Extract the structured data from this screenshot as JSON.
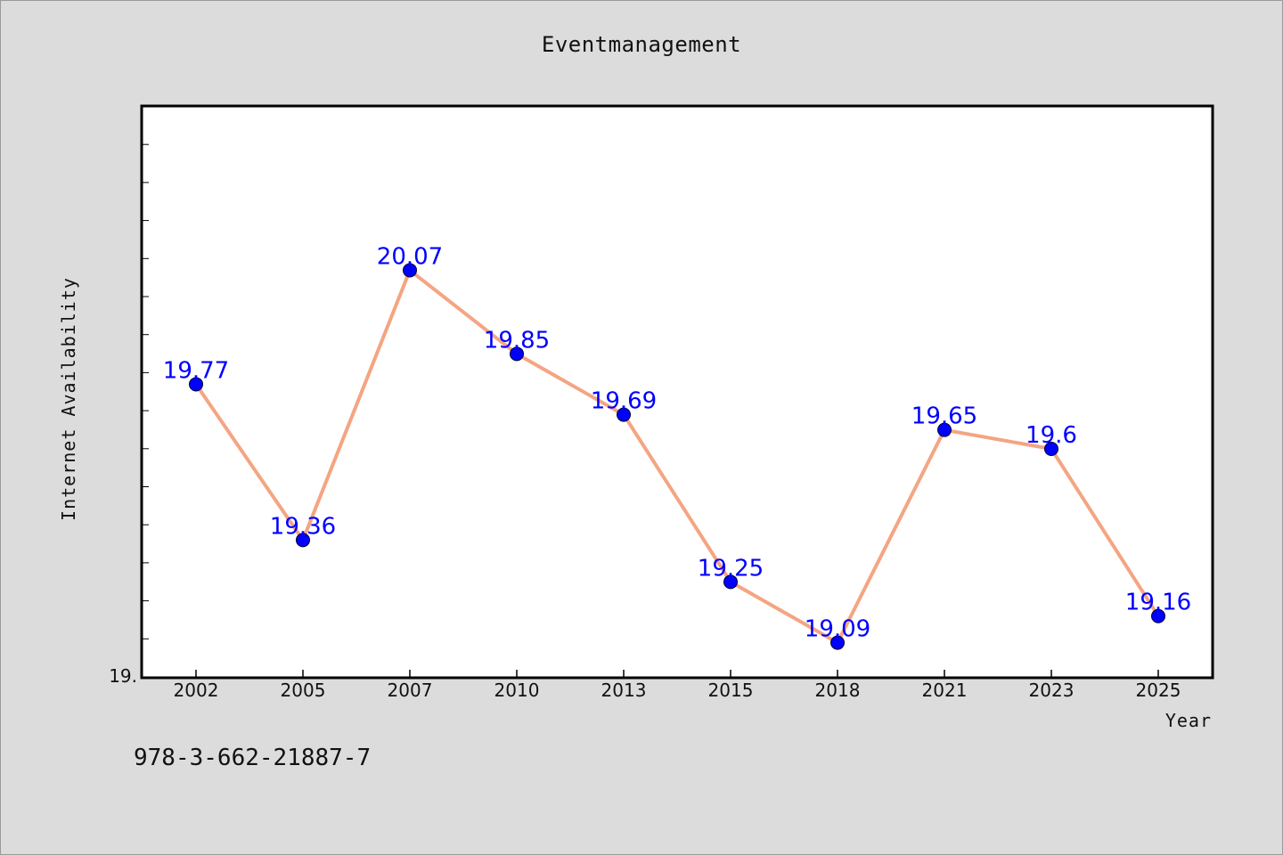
{
  "page": {
    "footer_code": "978-3-662-21887-7"
  },
  "chart_data": {
    "type": "line",
    "title": "Eventmanagement",
    "xlabel": "Year",
    "ylabel": "Internet Availability",
    "categories": [
      "2002",
      "2005",
      "2007",
      "2010",
      "2013",
      "2015",
      "2018",
      "2021",
      "2023",
      "2025"
    ],
    "series": [
      {
        "values": [
          19.77,
          19.36,
          20.07,
          19.85,
          19.69,
          19.25,
          19.09,
          19.65,
          19.6,
          19.16
        ]
      }
    ],
    "data_labels": [
      "19.77",
      "19.36",
      "20.07",
      "19.85",
      "19.69",
      "19.25",
      "19.09",
      "19.65",
      "19.6",
      "19.16"
    ],
    "y_tick_label": "19.",
    "ylim": [
      19.0,
      20.5
    ],
    "line_color": "#f4a582",
    "marker_color": "#0000ff",
    "label_color": "#0000ff",
    "grid": false
  }
}
